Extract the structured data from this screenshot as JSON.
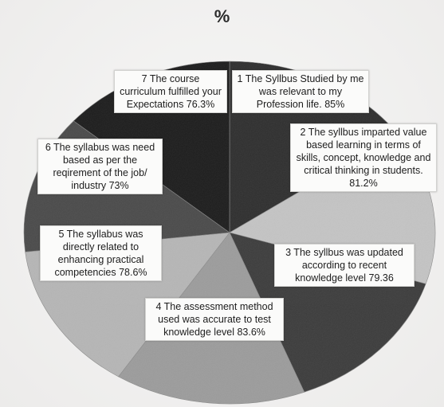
{
  "chart_data": {
    "type": "pie",
    "title": "%",
    "categories": [
      "1 The Syllbus Studied by me was relevant to my Profession life.",
      "2 The syllbus imparted value based learning in terms of skills, concept, knowledge and critical thinking in students.",
      "3 The syllbus was updated according to recent knowledge level",
      "4 The assessment method used was accurate to test knowledge level",
      "5 The syllabus was directly related to enhancing practical competencies",
      "6 The syllabus was need based as per the reqirement of the job/ industry",
      "7 The course curriculum fulfilled your Expectations"
    ],
    "values": [
      85,
      81.2,
      79.36,
      83.6,
      78.6,
      73,
      76.3
    ],
    "labels": [
      "1 The Syllbus Studied by me was relevant to my Profession life. 85%",
      "2 The syllbus imparted value based learning in terms of skills, concept, knowledge and critical thinking in students. 81.2%",
      "3 The syllbus was updated according to recent knowledge level 79.36",
      "4 The assessment method used was accurate to test knowledge level 83.6%",
      "5 The syllabus was directly related to enhancing practical competencies 78.6%",
      "6 The syllabus was need based as per the reqirement of the job/ industry 73%",
      "7 The course curriculum fulfilled your Expectations 76.3%"
    ],
    "colors": [
      "#2e2e2e",
      "#c4c4c4",
      "#3c3c3c",
      "#9c9c9c",
      "#b6b6b6",
      "#4a4a4a",
      "#1c1c1c"
    ],
    "legend": "none"
  }
}
